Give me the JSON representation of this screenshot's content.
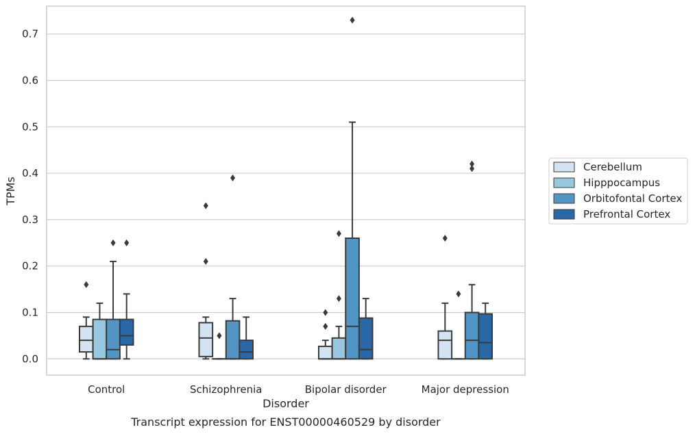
{
  "caption": "Transcript expression for ENST00000460529 by disorder",
  "colors": {
    "Cerebellum": "#d3e3f2",
    "Hipppocampus": "#9ac7e0",
    "Orbitofontal Cortex": "#5295c5",
    "Prefrontal Cortex": "#2967a7",
    "box_edge": "#3a3a3a",
    "grid": "#cccccc",
    "frame": "#cccccc"
  },
  "chart_data": {
    "type": "boxplot",
    "title": "",
    "xlabel": "Disorder",
    "ylabel": "TPMs",
    "ylim": [
      -0.035,
      0.76
    ],
    "yticks": [
      0.0,
      0.1,
      0.2,
      0.3,
      0.4,
      0.5,
      0.6,
      0.7
    ],
    "ytick_labels": [
      "0.0",
      "0.1",
      "0.2",
      "0.3",
      "0.4",
      "0.5",
      "0.6",
      "0.7"
    ],
    "grid": true,
    "legend_position": "outside-right",
    "categories": [
      "Control",
      "Schizophrenia",
      "Bipolar disorder",
      "Major depression"
    ],
    "series": [
      {
        "name": "Cerebellum",
        "boxes": [
          {
            "whislo": 0.0,
            "q1": 0.015,
            "med": 0.04,
            "q3": 0.07,
            "whishi": 0.09,
            "fliers": [
              0.16
            ]
          },
          {
            "whislo": 0.0,
            "q1": 0.005,
            "med": 0.045,
            "q3": 0.078,
            "whishi": 0.09,
            "fliers": [
              0.21,
              0.33
            ]
          },
          {
            "whislo": 0.0,
            "q1": 0.0,
            "med": 0.0,
            "q3": 0.027,
            "whishi": 0.04,
            "fliers": [
              0.07,
              0.1
            ]
          },
          {
            "whislo": 0.0,
            "q1": 0.0,
            "med": 0.04,
            "q3": 0.06,
            "whishi": 0.12,
            "fliers": [
              0.26
            ]
          }
        ]
      },
      {
        "name": "Hipppocampus",
        "boxes": [
          {
            "whislo": 0.0,
            "q1": 0.0,
            "med": 0.0,
            "q3": 0.085,
            "whishi": 0.12,
            "fliers": []
          },
          {
            "whislo": 0.0,
            "q1": 0.0,
            "med": 0.0,
            "q3": 0.0,
            "whishi": 0.0,
            "fliers": [
              0.05
            ]
          },
          {
            "whislo": 0.0,
            "q1": 0.0,
            "med": 0.0,
            "q3": 0.045,
            "whishi": 0.07,
            "fliers": [
              0.13,
              0.27
            ]
          },
          {
            "whislo": 0.0,
            "q1": 0.0,
            "med": 0.0,
            "q3": 0.0,
            "whishi": 0.0,
            "fliers": [
              0.14
            ]
          }
        ]
      },
      {
        "name": "Orbitofontal Cortex",
        "boxes": [
          {
            "whislo": 0.0,
            "q1": 0.0,
            "med": 0.02,
            "q3": 0.085,
            "whishi": 0.21,
            "fliers": [
              0.25
            ]
          },
          {
            "whislo": 0.0,
            "q1": 0.0,
            "med": 0.0,
            "q3": 0.082,
            "whishi": 0.13,
            "fliers": [
              0.39
            ]
          },
          {
            "whislo": 0.0,
            "q1": 0.0,
            "med": 0.07,
            "q3": 0.26,
            "whishi": 0.51,
            "fliers": [
              0.73
            ]
          },
          {
            "whislo": 0.0,
            "q1": 0.0,
            "med": 0.04,
            "q3": 0.1,
            "whishi": 0.16,
            "fliers": [
              0.41,
              0.42
            ]
          }
        ]
      },
      {
        "name": "Prefrontal Cortex",
        "boxes": [
          {
            "whislo": 0.0,
            "q1": 0.03,
            "med": 0.05,
            "q3": 0.085,
            "whishi": 0.14,
            "fliers": [
              0.25
            ]
          },
          {
            "whislo": 0.0,
            "q1": 0.0,
            "med": 0.015,
            "q3": 0.04,
            "whishi": 0.09,
            "fliers": []
          },
          {
            "whislo": 0.0,
            "q1": 0.0,
            "med": 0.02,
            "q3": 0.088,
            "whishi": 0.13,
            "fliers": []
          },
          {
            "whislo": 0.0,
            "q1": 0.0,
            "med": 0.035,
            "q3": 0.097,
            "whishi": 0.12,
            "fliers": []
          }
        ]
      }
    ]
  }
}
